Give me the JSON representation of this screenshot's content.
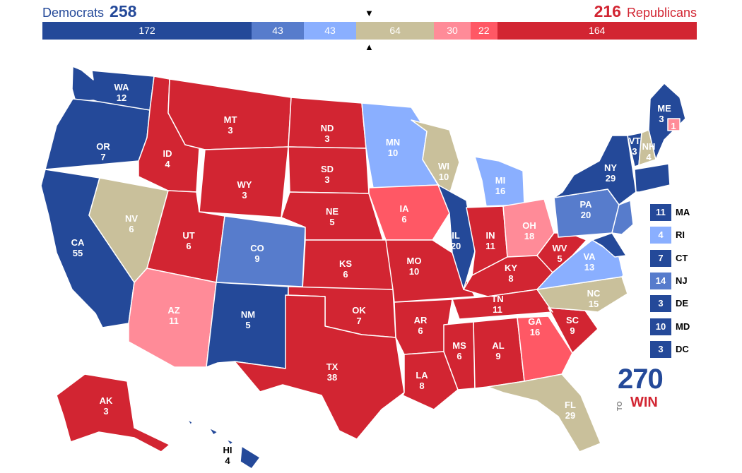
{
  "header": {
    "dem_label": "Democrats",
    "dem_total": "258",
    "rep_total": "216",
    "rep_label": "Republicans",
    "marker_top": "▼",
    "marker_bottom": "▲"
  },
  "colors": {
    "solid_d": "#244999",
    "likely_d": "#577ccc",
    "lean_d": "#8aafff",
    "tossup": "#c9c09b",
    "lean_r": "#ff8b98",
    "likely_r": "#ff5865",
    "solid_r": "#d22532"
  },
  "bar_segments": [
    {
      "label": "172",
      "value": 172,
      "category": "solid_d"
    },
    {
      "label": "43",
      "value": 43,
      "category": "likely_d"
    },
    {
      "label": "43",
      "value": 43,
      "category": "lean_d"
    },
    {
      "label": "64",
      "value": 64,
      "category": "tossup"
    },
    {
      "label": "30",
      "value": 30,
      "category": "lean_r"
    },
    {
      "label": "22",
      "value": 22,
      "category": "likely_r"
    },
    {
      "label": "164",
      "value": 164,
      "category": "solid_r"
    }
  ],
  "states": {
    "WA": {
      "abbr": "WA",
      "ev": "12",
      "category": "solid_d"
    },
    "OR": {
      "abbr": "OR",
      "ev": "7",
      "category": "solid_d"
    },
    "CA": {
      "abbr": "CA",
      "ev": "55",
      "category": "solid_d"
    },
    "NV": {
      "abbr": "NV",
      "ev": "6",
      "category": "tossup"
    },
    "ID": {
      "abbr": "ID",
      "ev": "4",
      "category": "solid_r"
    },
    "MT": {
      "abbr": "MT",
      "ev": "3",
      "category": "solid_r"
    },
    "WY": {
      "abbr": "WY",
      "ev": "3",
      "category": "solid_r"
    },
    "UT": {
      "abbr": "UT",
      "ev": "6",
      "category": "solid_r"
    },
    "AZ": {
      "abbr": "AZ",
      "ev": "11",
      "category": "lean_r"
    },
    "CO": {
      "abbr": "CO",
      "ev": "9",
      "category": "likely_d"
    },
    "NM": {
      "abbr": "NM",
      "ev": "5",
      "category": "solid_d"
    },
    "ND": {
      "abbr": "ND",
      "ev": "3",
      "category": "solid_r"
    },
    "SD": {
      "abbr": "SD",
      "ev": "3",
      "category": "solid_r"
    },
    "NE": {
      "abbr": "NE",
      "ev": "5",
      "category": "solid_r"
    },
    "KS": {
      "abbr": "KS",
      "ev": "6",
      "category": "solid_r"
    },
    "OK": {
      "abbr": "OK",
      "ev": "7",
      "category": "solid_r"
    },
    "TX": {
      "abbr": "TX",
      "ev": "38",
      "category": "solid_r"
    },
    "MN": {
      "abbr": "MN",
      "ev": "10",
      "category": "lean_d"
    },
    "IA": {
      "abbr": "IA",
      "ev": "6",
      "category": "likely_r"
    },
    "MO": {
      "abbr": "MO",
      "ev": "10",
      "category": "solid_r"
    },
    "AR": {
      "abbr": "AR",
      "ev": "6",
      "category": "solid_r"
    },
    "LA": {
      "abbr": "LA",
      "ev": "8",
      "category": "solid_r"
    },
    "WI": {
      "abbr": "WI",
      "ev": "10",
      "category": "tossup"
    },
    "IL": {
      "abbr": "IL",
      "ev": "20",
      "category": "solid_d"
    },
    "MI": {
      "abbr": "MI",
      "ev": "16",
      "category": "lean_d"
    },
    "IN": {
      "abbr": "IN",
      "ev": "11",
      "category": "solid_r"
    },
    "OH": {
      "abbr": "OH",
      "ev": "18",
      "category": "lean_r"
    },
    "KY": {
      "abbr": "KY",
      "ev": "8",
      "category": "solid_r"
    },
    "TN": {
      "abbr": "TN",
      "ev": "11",
      "category": "solid_r"
    },
    "MS": {
      "abbr": "MS",
      "ev": "6",
      "category": "solid_r"
    },
    "AL": {
      "abbr": "AL",
      "ev": "9",
      "category": "solid_r"
    },
    "GA": {
      "abbr": "GA",
      "ev": "16",
      "category": "likely_r"
    },
    "FL": {
      "abbr": "FL",
      "ev": "29",
      "category": "tossup"
    },
    "SC": {
      "abbr": "SC",
      "ev": "9",
      "category": "solid_r"
    },
    "NC": {
      "abbr": "NC",
      "ev": "15",
      "category": "tossup"
    },
    "VA": {
      "abbr": "VA",
      "ev": "13",
      "category": "lean_d"
    },
    "WV": {
      "abbr": "WV",
      "ev": "5",
      "category": "solid_r"
    },
    "PA": {
      "abbr": "PA",
      "ev": "20",
      "category": "likely_d"
    },
    "NY": {
      "abbr": "NY",
      "ev": "29",
      "category": "solid_d"
    },
    "VT": {
      "abbr": "VT",
      "ev": "3",
      "category": "solid_d"
    },
    "NH": {
      "abbr": "NH",
      "ev": "4",
      "category": "tossup"
    },
    "ME": {
      "abbr": "ME",
      "ev": "3",
      "category": "solid_d"
    },
    "ME2": {
      "abbr": "",
      "ev": "1",
      "category": "lean_r"
    },
    "AK": {
      "abbr": "AK",
      "ev": "3",
      "category": "solid_r"
    },
    "HI": {
      "abbr": "HI",
      "ev": "4",
      "category": "solid_d"
    }
  },
  "small_states": [
    {
      "ev": "11",
      "abbr": "MA",
      "category": "solid_d"
    },
    {
      "ev": "4",
      "abbr": "RI",
      "category": "lean_d"
    },
    {
      "ev": "7",
      "abbr": "CT",
      "category": "solid_d"
    },
    {
      "ev": "14",
      "abbr": "NJ",
      "category": "likely_d"
    },
    {
      "ev": "3",
      "abbr": "DE",
      "category": "solid_d"
    },
    {
      "ev": "10",
      "abbr": "MD",
      "category": "solid_d"
    },
    {
      "ev": "3",
      "abbr": "DC",
      "category": "solid_d"
    }
  ],
  "logo": {
    "number": "270",
    "to": "TO",
    "win": "WIN"
  }
}
